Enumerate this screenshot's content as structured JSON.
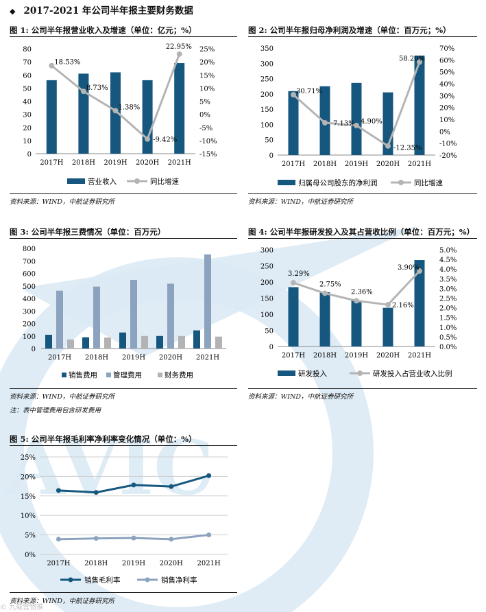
{
  "heading": {
    "bullet": "◆",
    "text": "2017-2021 年公司半年报主要财务数据"
  },
  "colors": {
    "navy": "#15577f",
    "light_gray": "#b4b4b4",
    "steel": "#8ca3bf",
    "pale": "#b3b3b3",
    "watermark": "#d8e8f3"
  },
  "watermark_text": "AVIC",
  "credit_text": "© 九载营销推",
  "panels": [
    {
      "title": "图 1: 公司半年报营业收入及增速（单位：亿元；%）",
      "source": "资料来源：WIND，中航证券研究所"
    },
    {
      "title": "图 2: 公司半年报归母净利润及增速（单位：百万元；%）",
      "source": "资料来源：WIND，中航证券研究所"
    },
    {
      "title": "图 3: 公司半年报三费情况（单位：百万元）",
      "source": "资料来源：WIND，中航证券研究所",
      "note": "注：表中管理费用包含研发费用"
    },
    {
      "title": "图 4: 公司半年报研发投入及其占营收比例（单位：百万元；%）",
      "source": "资料来源：WIND，中航证券研究所"
    },
    {
      "title": "图 5: 公司半年报毛利率净利率变化情况（单位：%）",
      "source": "资料来源：WIND，中航证券研究所"
    }
  ],
  "chart_data": [
    {
      "type": "bar",
      "categories": [
        "2017H",
        "2018H",
        "2019H",
        "2020H",
        "2021H"
      ],
      "series": [
        {
          "name": "营业收入",
          "kind": "bar",
          "axis": "left",
          "values": [
            56,
            61,
            62,
            56,
            69
          ]
        },
        {
          "name": "同比增速",
          "kind": "line",
          "axis": "right",
          "values": [
            18.53,
            8.73,
            1.38,
            -9.42,
            22.95
          ],
          "labels": [
            "18.53%",
            "8.73%",
            "1.38%",
            "-9.42%",
            "22.95%"
          ]
        }
      ],
      "ylim": [
        0,
        80
      ],
      "y_ticks": [
        "0",
        "10",
        "20",
        "30",
        "40",
        "50",
        "60",
        "70",
        "80"
      ],
      "y2lim": [
        -15,
        25
      ],
      "y2_ticks": [
        "-15%",
        "-10%",
        "-5%",
        "0%",
        "5%",
        "10%",
        "15%",
        "20%",
        "25%"
      ],
      "legend": "bottom"
    },
    {
      "type": "bar",
      "categories": [
        "2017H",
        "2018H",
        "2019H",
        "2020H",
        "2021H"
      ],
      "series": [
        {
          "name": "归属母公司股东的净利润",
          "kind": "bar",
          "axis": "left",
          "values": [
            209,
            225,
            236,
            205,
            325
          ]
        },
        {
          "name": "同比增速",
          "kind": "line",
          "axis": "right",
          "values": [
            30.71,
            7.13,
            4.9,
            -12.35,
            58.2
          ],
          "labels": [
            "30.71%",
            "7.13%",
            "4.90%",
            "-12.35%",
            "58.20%"
          ]
        }
      ],
      "ylim": [
        0,
        350
      ],
      "y_ticks": [
        "0",
        "50",
        "100",
        "150",
        "200",
        "250",
        "300",
        "350"
      ],
      "y2lim": [
        -20,
        70
      ],
      "y2_ticks": [
        "-20%",
        "-10%",
        "0%",
        "10%",
        "20%",
        "30%",
        "40%",
        "50%",
        "60%",
        "70%"
      ],
      "legend": "bottom"
    },
    {
      "type": "bar",
      "categories": [
        "2017H",
        "2018H",
        "2019H",
        "2020H",
        "2021H"
      ],
      "series": [
        {
          "name": "销售费用",
          "values": [
            110,
            90,
            128,
            100,
            145
          ]
        },
        {
          "name": "管理费用",
          "values": [
            462,
            495,
            548,
            518,
            752
          ]
        },
        {
          "name": "财务费用",
          "values": [
            72,
            88,
            100,
            100,
            95
          ]
        }
      ],
      "ylim": [
        0,
        800
      ],
      "y_ticks": [
        "0",
        "100",
        "200",
        "300",
        "400",
        "500",
        "600",
        "700",
        "800"
      ],
      "legend": "bottom"
    },
    {
      "type": "bar",
      "categories": [
        "2017H",
        "2018H",
        "2019H",
        "2020H",
        "2021H"
      ],
      "series": [
        {
          "name": "研发投入",
          "kind": "bar",
          "axis": "left",
          "values": [
            184,
            168,
            143,
            120,
            268
          ]
        },
        {
          "name": "研发投入占营业收入比例",
          "kind": "line",
          "axis": "right",
          "values": [
            3.29,
            2.75,
            2.36,
            2.16,
            3.9
          ],
          "labels": [
            "3.29%",
            "2.75%",
            "2.36%",
            "2.16%",
            "3.90%"
          ]
        }
      ],
      "ylim": [
        0,
        300
      ],
      "y_ticks": [
        "0",
        "50",
        "100",
        "150",
        "200",
        "250",
        "300"
      ],
      "y2lim": [
        0,
        5
      ],
      "y2_ticks": [
        "0.0%",
        "0.5%",
        "1.0%",
        "1.5%",
        "2.0%",
        "2.5%",
        "3.0%",
        "3.5%",
        "4.0%",
        "4.5%",
        "5.0%"
      ],
      "legend": "bottom"
    },
    {
      "type": "line",
      "categories": [
        "2017H",
        "2018H",
        "2019H",
        "2020H",
        "2021H"
      ],
      "series": [
        {
          "name": "销售毛利率",
          "values": [
            16.4,
            15.9,
            17.8,
            17.4,
            20.2
          ]
        },
        {
          "name": "销售净利率",
          "values": [
            3.9,
            4.1,
            4.2,
            3.9,
            5.0
          ]
        }
      ],
      "ylim": [
        0,
        25
      ],
      "y_ticks": [
        "0%",
        "5%",
        "10%",
        "15%",
        "20%",
        "25%"
      ],
      "grid": true,
      "legend": "bottom"
    }
  ]
}
